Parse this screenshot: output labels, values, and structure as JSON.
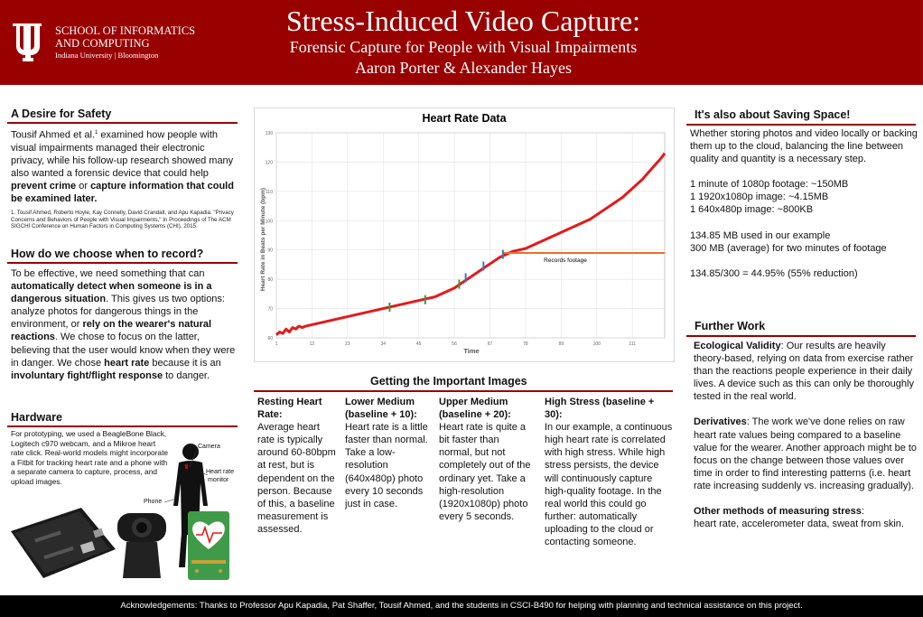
{
  "header": {
    "school_line1": "SCHOOL OF INFORMATICS",
    "school_line2": "AND COMPUTING",
    "university": "Indiana University | Bloomington",
    "title": "Stress-Induced Video Capture:",
    "subtitle": "Forensic Capture for People with Visual Impairments",
    "authors": "Aaron Porter & Alexander Hayes"
  },
  "desire": {
    "heading": "A Desire for Safety",
    "p1_a": "Tousif Ahmed et al.",
    "p1_sup": "1",
    "p1_b": " examined how people with visual impairments managed their electronic privacy, while his follow-up research showed many also wanted a forensic device that could help ",
    "p1_bold1": "prevent crime",
    "p1_c": " or ",
    "p1_bold2": "capture information that could be examined later.",
    "footnote": "1. Tousif Ahmed, Roberto Hoyle, Kay Connelly, David Crandall, and Apu Kapadia. \"Privacy Concerns and Behaviors of People with Visual Impairments,\" In Proceedings of The ACM SIGCHI Conference on Human Factors in Computing Systems (CHI), 2015."
  },
  "record": {
    "heading": "How do we choose when to record?",
    "t1": "To be effective, we need something that can ",
    "b1": "automatically detect when someone is in a dangerous situation",
    "t2": ".  This gives us two options: analyze photos for dangerous things in the environment, or ",
    "b2": "rely on the wearer's natural reactions",
    "t3": ".  We chose to focus on the latter, believing that the user would know when they were in danger.  We chose ",
    "b3": "heart rate",
    "t4": " because it is an ",
    "b4": "involuntary fight/flight response",
    "t5": " to danger."
  },
  "hardware": {
    "heading": "Hardware",
    "text": "For prototyping, we used a BeagleBone Black, Logitech c970 webcam, and a Mikroe heart rate click.  Real-world models might incorporate a Fitbit for tracking heart rate and a phone with a separate camera to capture, process, and upload images.",
    "label_camera": "Camera",
    "label_heart1": "Heart rate",
    "label_heart2": "monitor",
    "label_phone": "Phone"
  },
  "chart_data": {
    "type": "line",
    "title": "Heart Rate Data",
    "xlabel": "Time",
    "ylabel": "Heart Rate in Beats per Minute (bpm)",
    "xlim": [
      1,
      121
    ],
    "ylim": [
      60,
      130
    ],
    "x_ticks": [
      1,
      12,
      23,
      34,
      45,
      56,
      67,
      78,
      89,
      100,
      111
    ],
    "y_ticks": [
      60,
      70,
      80,
      90,
      100,
      110,
      120,
      130
    ],
    "annotation": "Records footage",
    "series": [
      {
        "name": "Heart rate",
        "color": "#e31a1c",
        "x": [
          1,
          2,
          3,
          4,
          5,
          6,
          7,
          8,
          9,
          10,
          12,
          14,
          16,
          18,
          20,
          22,
          24,
          26,
          28,
          30,
          32,
          34,
          36,
          38,
          40,
          42,
          44,
          46,
          48,
          50,
          52,
          54,
          56,
          58,
          60,
          62,
          64,
          66,
          68,
          70,
          72,
          74,
          76,
          78,
          80,
          82,
          84,
          86,
          88,
          90,
          92,
          94,
          96,
          98,
          100,
          102,
          104,
          106,
          108,
          110,
          112,
          114,
          116,
          118,
          120,
          121
        ],
        "y": [
          61,
          62,
          61.5,
          63,
          62,
          63.5,
          63,
          64,
          63.5,
          64,
          64.5,
          65,
          65.5,
          66,
          66.5,
          67,
          67.5,
          68,
          68.5,
          69,
          69.5,
          70,
          70.5,
          71,
          71.5,
          72,
          72.5,
          73,
          73.5,
          74,
          75,
          76,
          77,
          78.5,
          80,
          81.5,
          83,
          84.5,
          86,
          87.5,
          88.5,
          89.5,
          90,
          90.5,
          91.5,
          92.5,
          93.5,
          94.5,
          95.5,
          96.5,
          97.5,
          98.5,
          99.5,
          100.5,
          102,
          103.5,
          105,
          106.5,
          108,
          110,
          112,
          114,
          116.5,
          119,
          121.5,
          123
        ]
      },
      {
        "name": "Records footage",
        "color": "#e8702a",
        "x": [
          71,
          121
        ],
        "y": [
          89,
          89
        ]
      }
    ],
    "markers": [
      {
        "x": 36,
        "y": 70.5,
        "color": "#2e9e3a"
      },
      {
        "x": 47,
        "y": 73,
        "color": "#2e9e3a"
      },
      {
        "x": 57.5,
        "y": 78.3,
        "color": "#2e9e3a"
      },
      {
        "x": 59.5,
        "y": 80.5,
        "color": "#3a78c8"
      },
      {
        "x": 65,
        "y": 84.5,
        "color": "#3a78c8"
      },
      {
        "x": 71,
        "y": 88.5,
        "color": "#3a78c8"
      }
    ]
  },
  "images": {
    "heading": "Getting the Important Images",
    "cols": [
      {
        "h": "Resting Heart Rate:",
        "t": "Average heart rate is typically around 60-80bpm at rest, but is dependent on the person.   Because of this, a baseline measurement is assessed."
      },
      {
        "h": "Lower Medium (baseline + 10):",
        "t": "Heart rate is a little faster than normal.  Take a low-resolution (640x480p) photo every 10 seconds just in case."
      },
      {
        "h": "Upper Medium (baseline + 20):",
        "t": "Heart rate is quite a bit faster than normal, but not completely out of the ordinary yet.  Take a high-resolution (1920x1080p) photo every 5 seconds."
      },
      {
        "h": "High Stress (baseline + 30):",
        "t": "In our example, a continuous high heart rate is correlated with high stress.  While high stress persists, the device will continuously capture high-quality footage.  In the real world this could go further: automatically uploading to the cloud or contacting someone."
      }
    ]
  },
  "space": {
    "heading": "It's also about Saving Space!",
    "p1": "Whether storing photos and video locally or backing them up to the cloud, balancing the line between quality and quantity is a necessary step.",
    "l1": "1 minute of 1080p footage: ~150MB",
    "l2": "1 1920x1080p image: ~4.15MB",
    "l3": "1 640x480p image: ~800KB",
    "l4": "134.85 MB used in our example",
    "l5": "300 MB (average) for two minutes of footage",
    "l6": "134.85/300 = 44.95% (55% reduction)"
  },
  "further": {
    "heading": "Further Work",
    "h1": "Ecological Validity",
    "t1": ": Our results are heavily theory-based, relying on data from exercise rather than the reactions people experience in their daily lives.  A device such as this can only be thoroughly tested in the real world.",
    "h2": "Derivatives",
    "t2": ":  The work we've done relies on raw heart rate values being compared to a baseline value for the wearer.  Another approach might be to focus on the change between those values over time in order to find interesting patterns (i.e. heart rate increasing suddenly vs. increasing gradually).",
    "h3": "Other methods of measuring stress",
    "t3": ":",
    "t3b": "heart rate, accelerometer data, sweat from skin."
  },
  "footer": {
    "text": "Acknowledgements: Thanks to Professor Apu Kapadia, Pat Shaffer, Tousif Ahmed, and the students in CSCI-B490 for helping with planning and technical assistance on this project."
  },
  "colors": {
    "brand": "#990000",
    "line": "#e31a1c",
    "footage": "#e8702a"
  }
}
